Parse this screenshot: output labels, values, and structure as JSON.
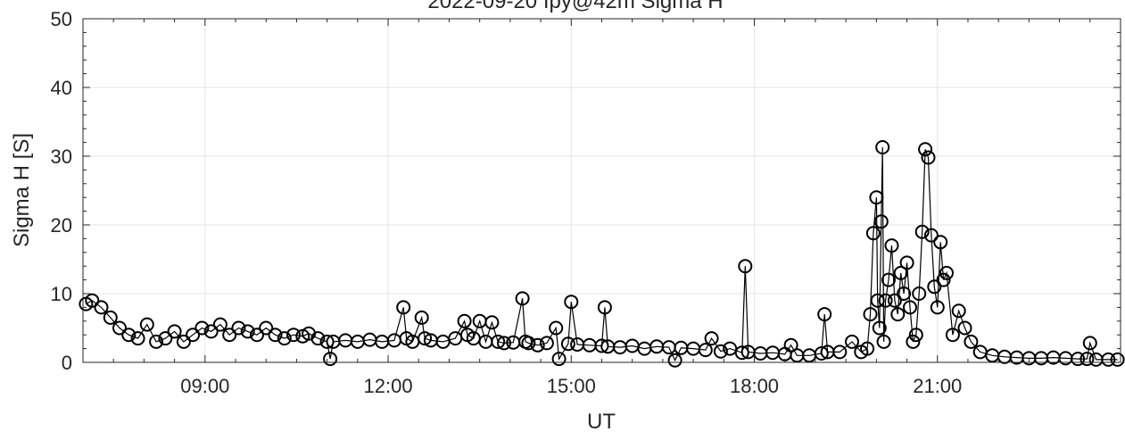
{
  "chart_data": {
    "type": "scatter",
    "title": "2022-09-20 Ipy@42m Sigma H",
    "xlabel": "UT",
    "ylabel": "Sigma H [S]",
    "x_unit": "hours UT",
    "xlim": [
      7.0,
      24.0
    ],
    "ylim": [
      0,
      50
    ],
    "x_ticks": [
      9,
      12,
      15,
      18,
      21
    ],
    "x_tick_labels": [
      "09:00",
      "12:00",
      "15:00",
      "18:00",
      "21:00"
    ],
    "y_ticks": [
      0,
      10,
      20,
      30,
      40,
      50
    ],
    "y_tick_labels": [
      "0",
      "10",
      "20",
      "30",
      "40",
      "50"
    ],
    "grid": true,
    "marker": "open-circle",
    "line": true,
    "colors": {
      "series": "#000000",
      "grid": "#e6e6e6",
      "axes": "#262626"
    },
    "series": [
      {
        "x": [
          7.05,
          7.15,
          7.3,
          7.45,
          7.6,
          7.75,
          7.9,
          8.05,
          8.2,
          8.35,
          8.5,
          8.65,
          8.8,
          8.95,
          9.1,
          9.25,
          9.4,
          9.55,
          9.7,
          9.85,
          10.0,
          10.15,
          10.3,
          10.45,
          10.6,
          10.7,
          10.85,
          11.0,
          11.05,
          11.1,
          11.3,
          11.5,
          11.7,
          11.9,
          12.1,
          12.25,
          12.3,
          12.4,
          12.55,
          12.6,
          12.7,
          12.9,
          13.1,
          13.25,
          13.3,
          13.4,
          13.5,
          13.6,
          13.7,
          13.8,
          13.9,
          14.05,
          14.2,
          14.25,
          14.3,
          14.45,
          14.6,
          14.75,
          14.8,
          14.95,
          15.0,
          15.1,
          15.3,
          15.5,
          15.55,
          15.6,
          15.8,
          16.0,
          16.2,
          16.4,
          16.6,
          16.7,
          16.8,
          17.0,
          17.2,
          17.3,
          17.45,
          17.6,
          17.8,
          17.85,
          17.9,
          18.1,
          18.3,
          18.5,
          18.6,
          18.7,
          18.9,
          19.1,
          19.15,
          19.2,
          19.4,
          19.6,
          19.75,
          19.85,
          19.9,
          19.95,
          20.0,
          20.02,
          20.05,
          20.08,
          20.1,
          20.12,
          20.15,
          20.2,
          20.25,
          20.3,
          20.35,
          20.4,
          20.45,
          20.5,
          20.55,
          20.6,
          20.65,
          20.7,
          20.75,
          20.8,
          20.85,
          20.9,
          20.95,
          21.0,
          21.05,
          21.1,
          21.15,
          21.25,
          21.35,
          21.45,
          21.55,
          21.7,
          21.9,
          22.1,
          22.3,
          22.5,
          22.7,
          22.9,
          23.1,
          23.3,
          23.45,
          23.5,
          23.6,
          23.8,
          23.95
        ],
        "y": [
          8.5,
          9.0,
          8.0,
          6.5,
          5.0,
          4.0,
          3.5,
          5.5,
          3.0,
          3.5,
          4.5,
          3.0,
          4.0,
          5.0,
          4.5,
          5.5,
          4.0,
          5.0,
          4.5,
          4.0,
          5.0,
          4.0,
          3.5,
          4.0,
          3.8,
          4.2,
          3.5,
          3.0,
          0.5,
          3.0,
          3.2,
          3.0,
          3.3,
          3.0,
          3.2,
          8.0,
          3.5,
          3.0,
          6.5,
          3.5,
          3.2,
          3.0,
          3.5,
          6.0,
          4.0,
          3.5,
          6.0,
          3.0,
          5.8,
          3.0,
          2.8,
          2.9,
          9.3,
          3.0,
          2.8,
          2.5,
          2.8,
          5.0,
          0.5,
          2.7,
          8.8,
          2.6,
          2.5,
          2.4,
          8.0,
          2.3,
          2.2,
          2.4,
          2.0,
          2.3,
          2.2,
          0.3,
          2.1,
          2.0,
          1.8,
          3.5,
          1.6,
          2.0,
          1.4,
          14.0,
          1.5,
          1.3,
          1.4,
          1.2,
          2.5,
          1.0,
          1.0,
          1.3,
          7.0,
          1.5,
          1.5,
          3.0,
          1.5,
          2.0,
          7.0,
          18.8,
          24.0,
          9.0,
          5.0,
          20.5,
          31.3,
          3.0,
          9.0,
          12.0,
          17.0,
          9.0,
          7.0,
          13.0,
          10.0,
          14.5,
          8.0,
          3.0,
          4.0,
          10.0,
          19.0,
          31.0,
          29.8,
          18.5,
          11.0,
          8.0,
          17.5,
          12.0,
          13.0,
          4.0,
          7.5,
          5.0,
          3.0,
          1.5,
          1.0,
          0.8,
          0.7,
          0.6,
          0.6,
          0.7,
          0.6,
          0.5,
          0.5,
          2.8,
          0.4,
          0.4,
          0.4
        ]
      }
    ]
  }
}
